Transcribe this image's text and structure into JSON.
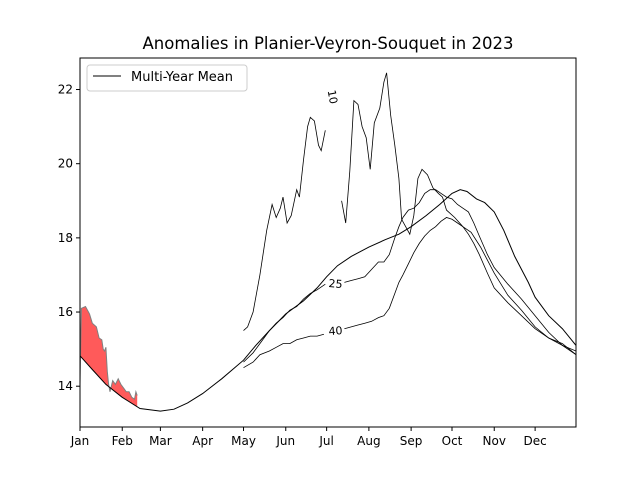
{
  "chart_data": {
    "type": "line",
    "title": "Anomalies in Planier-Veyron-Souquet in 2023",
    "xlabel": "",
    "ylabel": "",
    "x_unit": "day of year",
    "xlim": [
      1,
      365
    ],
    "ylim": [
      12.9,
      22.85
    ],
    "grid": false,
    "legend": {
      "placement": "top-left",
      "entries": [
        "Multi-Year Mean"
      ]
    },
    "x_ticks": [
      {
        "label": "Jan",
        "day": 1
      },
      {
        "label": "Feb",
        "day": 32
      },
      {
        "label": "Mar",
        "day": 60
      },
      {
        "label": "Apr",
        "day": 91
      },
      {
        "label": "May",
        "day": 121
      },
      {
        "label": "Jun",
        "day": 152
      },
      {
        "label": "Jul",
        "day": 182
      },
      {
        "label": "Aug",
        "day": 213
      },
      {
        "label": "Sep",
        "day": 244
      },
      {
        "label": "Oct",
        "day": 274
      },
      {
        "label": "Nov",
        "day": 305
      },
      {
        "label": "Dec",
        "day": 335
      }
    ],
    "y_ticks": [
      14,
      16,
      18,
      20,
      22
    ],
    "series": [
      {
        "name": "Multi-Year Mean",
        "color": "#000000",
        "points": [
          [
            1,
            14.82
          ],
          [
            10,
            14.45
          ],
          [
            20,
            14.05
          ],
          [
            32,
            13.7
          ],
          [
            45,
            13.4
          ],
          [
            60,
            13.33
          ],
          [
            70,
            13.38
          ],
          [
            80,
            13.55
          ],
          [
            91,
            13.8
          ],
          [
            105,
            14.2
          ],
          [
            121,
            14.7
          ],
          [
            130,
            15.1
          ],
          [
            140,
            15.5
          ],
          [
            152,
            15.95
          ],
          [
            165,
            16.3
          ],
          [
            175,
            16.65
          ],
          [
            182,
            16.95
          ],
          [
            190,
            17.25
          ],
          [
            200,
            17.5
          ],
          [
            213,
            17.75
          ],
          [
            225,
            17.95
          ],
          [
            235,
            18.1
          ],
          [
            244,
            18.3
          ],
          [
            255,
            18.6
          ],
          [
            265,
            18.9
          ],
          [
            274,
            19.2
          ],
          [
            280,
            19.3
          ],
          [
            285,
            19.25
          ],
          [
            292,
            19.05
          ],
          [
            298,
            18.95
          ],
          [
            305,
            18.7
          ],
          [
            312,
            18.2
          ],
          [
            320,
            17.5
          ],
          [
            330,
            16.8
          ],
          [
            335,
            16.4
          ],
          [
            345,
            15.9
          ],
          [
            355,
            15.55
          ],
          [
            365,
            15.1
          ]
        ]
      }
    ],
    "percentile_series": [
      {
        "label": "10",
        "color": "#000000",
        "points": [
          [
            121,
            15.5
          ],
          [
            124,
            15.6
          ],
          [
            128,
            16.0
          ],
          [
            133,
            17.0
          ],
          [
            138,
            18.2
          ],
          [
            142,
            18.9
          ],
          [
            145,
            18.55
          ],
          [
            148,
            18.8
          ],
          [
            150,
            19.1
          ],
          [
            153,
            18.4
          ],
          [
            156,
            18.6
          ],
          [
            160,
            19.3
          ],
          [
            162,
            19.1
          ],
          [
            165,
            20.1
          ],
          [
            168,
            21.0
          ],
          [
            170,
            21.25
          ],
          [
            173,
            21.15
          ],
          [
            176,
            20.5
          ],
          [
            178,
            20.35
          ],
          [
            181,
            20.9
          ],
          [
            184,
            21.3
          ],
          [
            186,
            22.0
          ],
          [
            187,
            21.6
          ],
          [
            190,
            19.8
          ],
          [
            193,
            19.0
          ],
          [
            196,
            18.4
          ],
          [
            199,
            19.8
          ],
          [
            202,
            21.7
          ],
          [
            205,
            21.6
          ],
          [
            208,
            21.0
          ],
          [
            211,
            20.7
          ],
          [
            214,
            19.85
          ],
          [
            217,
            21.1
          ],
          [
            221,
            21.5
          ],
          [
            224,
            22.2
          ],
          [
            226,
            22.45
          ],
          [
            229,
            21.3
          ],
          [
            232,
            20.5
          ],
          [
            235,
            19.6
          ],
          [
            237,
            18.5
          ],
          [
            240,
            18.3
          ],
          [
            243,
            18.1
          ],
          [
            246,
            18.6
          ],
          [
            249,
            19.6
          ],
          [
            252,
            19.85
          ],
          [
            256,
            19.7
          ],
          [
            260,
            19.35
          ],
          [
            264,
            19.2
          ],
          [
            267,
            19.1
          ],
          [
            270,
            18.75
          ],
          [
            276,
            18.55
          ],
          [
            282,
            18.3
          ],
          [
            288,
            18.15
          ],
          [
            295,
            17.75
          ],
          [
            305,
            17.05
          ],
          [
            315,
            16.45
          ],
          [
            325,
            16.05
          ],
          [
            335,
            15.6
          ],
          [
            345,
            15.3
          ],
          [
            355,
            15.15
          ],
          [
            365,
            14.85
          ]
        ]
      },
      {
        "label": "25",
        "color": "#000000",
        "points": [
          [
            121,
            14.65
          ],
          [
            128,
            14.9
          ],
          [
            133,
            15.15
          ],
          [
            140,
            15.5
          ],
          [
            145,
            15.7
          ],
          [
            150,
            15.85
          ],
          [
            155,
            16.05
          ],
          [
            160,
            16.15
          ],
          [
            165,
            16.35
          ],
          [
            170,
            16.5
          ],
          [
            175,
            16.6
          ],
          [
            181,
            16.75
          ],
          [
            186,
            16.8
          ],
          [
            190,
            16.75
          ],
          [
            195,
            16.8
          ],
          [
            200,
            16.85
          ],
          [
            205,
            16.9
          ],
          [
            210,
            16.95
          ],
          [
            215,
            17.15
          ],
          [
            220,
            17.35
          ],
          [
            224,
            17.35
          ],
          [
            228,
            17.55
          ],
          [
            232,
            18.0
          ],
          [
            235,
            18.3
          ],
          [
            238,
            18.55
          ],
          [
            242,
            18.75
          ],
          [
            246,
            18.8
          ],
          [
            250,
            18.95
          ],
          [
            254,
            19.2
          ],
          [
            258,
            19.3
          ],
          [
            262,
            19.3
          ],
          [
            266,
            19.2
          ],
          [
            270,
            19.1
          ],
          [
            274,
            19.05
          ],
          [
            278,
            18.9
          ],
          [
            282,
            18.8
          ],
          [
            286,
            18.7
          ],
          [
            290,
            18.4
          ],
          [
            294,
            18.05
          ],
          [
            300,
            17.55
          ],
          [
            305,
            17.2
          ],
          [
            315,
            16.75
          ],
          [
            325,
            16.35
          ],
          [
            335,
            15.9
          ],
          [
            345,
            15.45
          ],
          [
            355,
            15.1
          ],
          [
            365,
            14.95
          ]
        ]
      },
      {
        "label": "40",
        "color": "#000000",
        "points": [
          [
            121,
            14.5
          ],
          [
            128,
            14.65
          ],
          [
            133,
            14.85
          ],
          [
            140,
            14.95
          ],
          [
            145,
            15.05
          ],
          [
            150,
            15.15
          ],
          [
            155,
            15.15
          ],
          [
            160,
            15.25
          ],
          [
            165,
            15.3
          ],
          [
            170,
            15.35
          ],
          [
            175,
            15.35
          ],
          [
            180,
            15.4
          ],
          [
            185,
            15.5
          ],
          [
            190,
            15.5
          ],
          [
            195,
            15.55
          ],
          [
            200,
            15.6
          ],
          [
            205,
            15.65
          ],
          [
            210,
            15.7
          ],
          [
            215,
            15.75
          ],
          [
            220,
            15.85
          ],
          [
            224,
            15.9
          ],
          [
            228,
            16.1
          ],
          [
            232,
            16.5
          ],
          [
            235,
            16.8
          ],
          [
            238,
            17.0
          ],
          [
            242,
            17.3
          ],
          [
            246,
            17.6
          ],
          [
            250,
            17.85
          ],
          [
            254,
            18.05
          ],
          [
            258,
            18.2
          ],
          [
            262,
            18.3
          ],
          [
            266,
            18.45
          ],
          [
            270,
            18.55
          ],
          [
            274,
            18.5
          ],
          [
            278,
            18.4
          ],
          [
            282,
            18.3
          ],
          [
            286,
            18.1
          ],
          [
            290,
            17.85
          ],
          [
            294,
            17.55
          ],
          [
            300,
            17.05
          ],
          [
            305,
            16.65
          ],
          [
            315,
            16.25
          ],
          [
            325,
            15.9
          ],
          [
            335,
            15.55
          ],
          [
            345,
            15.3
          ],
          [
            355,
            15.1
          ],
          [
            365,
            14.85
          ]
        ]
      }
    ],
    "observed_2023": {
      "color": "#808080",
      "fill_color": "#ff5a5a",
      "points": [
        [
          1,
          14.05
        ],
        [
          2,
          16.1
        ],
        [
          5,
          16.15
        ],
        [
          8,
          15.95
        ],
        [
          10,
          15.7
        ],
        [
          13,
          15.6
        ],
        [
          15,
          15.3
        ],
        [
          17,
          15.25
        ],
        [
          18,
          15.0
        ],
        [
          19,
          14.95
        ],
        [
          20,
          15.05
        ],
        [
          21,
          14.4
        ],
        [
          22,
          14.05
        ],
        [
          23,
          13.85
        ],
        [
          24,
          14.0
        ],
        [
          25,
          14.15
        ],
        [
          27,
          14.05
        ],
        [
          29,
          14.2
        ],
        [
          31,
          14.05
        ],
        [
          33,
          13.95
        ],
        [
          35,
          13.85
        ],
        [
          37,
          13.85
        ],
        [
          39,
          13.7
        ],
        [
          41,
          13.65
        ],
        [
          42,
          13.85
        ],
        [
          43,
          13.75
        ]
      ]
    }
  }
}
